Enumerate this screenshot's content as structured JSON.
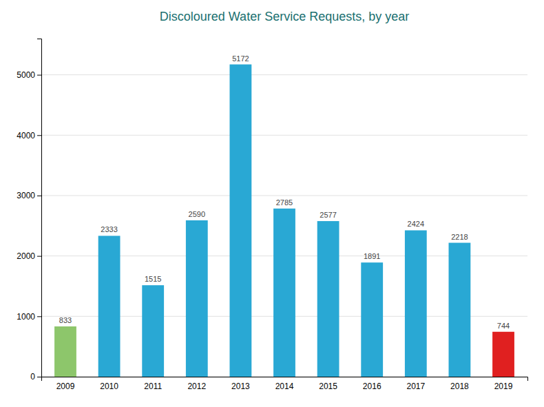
{
  "chart_data": {
    "type": "bar",
    "title": "Discoloured Water Service Requests, by year",
    "categories": [
      "2009",
      "2010",
      "2011",
      "2012",
      "2013",
      "2014",
      "2015",
      "2016",
      "2017",
      "2018",
      "2019"
    ],
    "values": [
      833,
      2333,
      1515,
      2590,
      5172,
      2785,
      2577,
      1891,
      2424,
      2218,
      744
    ],
    "colors": [
      "#8dc66b",
      "#29a8d4",
      "#29a8d4",
      "#29a8d4",
      "#29a8d4",
      "#29a8d4",
      "#29a8d4",
      "#29a8d4",
      "#29a8d4",
      "#29a8d4",
      "#e02020"
    ],
    "ylim": [
      0,
      5600
    ],
    "yticks": [
      0,
      1000,
      2000,
      3000,
      4000,
      5000
    ],
    "grid": true,
    "data_labels": true
  }
}
